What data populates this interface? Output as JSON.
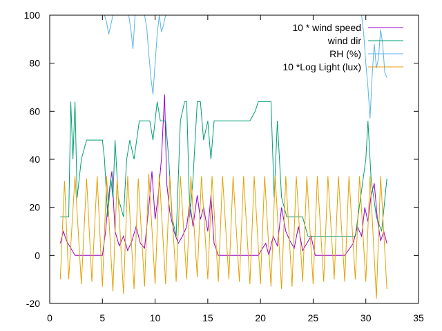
{
  "chart_data": {
    "type": "line",
    "title": "",
    "xlabel": "",
    "ylabel": "",
    "xlim": [
      0,
      35
    ],
    "ylim": [
      -20,
      100
    ],
    "x_ticks": [
      0,
      5,
      10,
      15,
      20,
      25,
      30,
      35
    ],
    "y_ticks": [
      -20,
      0,
      20,
      40,
      60,
      80,
      100
    ],
    "grid": false,
    "legend_position": "top-right",
    "series": [
      {
        "name": "10 * wind speed",
        "color": "#9400d3",
        "x": [
          1.0,
          1.3,
          1.6,
          2.0,
          2.4,
          3.0,
          4.0,
          5.0,
          5.3,
          5.6,
          5.9,
          6.2,
          6.6,
          7.0,
          7.4,
          7.8,
          8.2,
          8.6,
          9.0,
          9.4,
          9.7,
          10.0,
          10.3,
          10.6,
          10.9,
          11.1,
          11.4,
          11.8,
          12.2,
          12.6,
          13.0,
          13.3,
          13.6,
          14.0,
          14.3,
          14.6,
          15.0,
          15.3,
          15.6,
          16.0,
          17.0,
          18.0,
          19.0,
          19.8,
          20.2,
          20.5,
          20.8,
          21.2,
          21.6,
          22.0,
          22.4,
          22.8,
          23.2,
          23.6,
          24.0,
          24.4,
          24.8,
          25.2,
          26.0,
          27.0,
          28.0,
          28.8,
          29.2,
          29.6,
          29.9,
          30.2,
          30.5,
          30.8,
          31.1,
          31.4,
          31.7,
          32.0
        ],
        "values": [
          5,
          10,
          6,
          3,
          0,
          0,
          0,
          0,
          10,
          25,
          35,
          10,
          4,
          8,
          2,
          6,
          12,
          5,
          3,
          20,
          35,
          15,
          25,
          40,
          67,
          30,
          18,
          10,
          5,
          8,
          12,
          22,
          12,
          25,
          15,
          20,
          10,
          25,
          5,
          0,
          0,
          0,
          0,
          0,
          3,
          5,
          0,
          8,
          4,
          20,
          10,
          6,
          3,
          12,
          2,
          5,
          8,
          0,
          0,
          0,
          0,
          5,
          12,
          8,
          20,
          14,
          25,
          30,
          15,
          6,
          10,
          5
        ]
      },
      {
        "name": "wind dir",
        "color": "#009e73",
        "x": [
          1.0,
          1.8,
          2.0,
          2.2,
          2.4,
          2.6,
          3.0,
          3.5,
          4.0,
          5.0,
          5.2,
          5.5,
          5.8,
          6.0,
          6.2,
          6.5,
          7.0,
          7.3,
          7.6,
          8.0,
          8.5,
          9.0,
          9.5,
          9.8,
          10.2,
          10.5,
          11.0,
          11.3,
          11.6,
          12.0,
          12.4,
          12.8,
          13.0,
          13.3,
          13.6,
          14.0,
          14.3,
          14.6,
          15.0,
          15.3,
          15.6,
          17.0,
          19.0,
          19.5,
          19.8,
          20.5,
          21.0,
          21.3,
          21.6,
          22.0,
          22.5,
          24.0,
          24.5,
          25.0,
          26.0,
          28.0,
          29.0,
          29.5,
          30.0,
          30.2,
          30.5,
          31.0,
          31.5,
          32.0
        ],
        "values": [
          16,
          16,
          64,
          40,
          64,
          24,
          40,
          48,
          48,
          48,
          40,
          16,
          32,
          24,
          48,
          24,
          16,
          40,
          48,
          40,
          56,
          56,
          56,
          48,
          64,
          56,
          56,
          40,
          16,
          8,
          56,
          64,
          64,
          16,
          32,
          64,
          64,
          48,
          56,
          40,
          56,
          56,
          56,
          60,
          64,
          64,
          64,
          24,
          56,
          24,
          16,
          16,
          8,
          8,
          8,
          8,
          8,
          24,
          40,
          56,
          32,
          16,
          10,
          32
        ]
      },
      {
        "name": "RH (%)",
        "color": "#56b4e9",
        "x": [
          5.2,
          5.4,
          5.6,
          5.8,
          6.0,
          7.5,
          7.7,
          7.9,
          8.1,
          9.0,
          9.2,
          9.4,
          9.6,
          9.8,
          10.0,
          10.2,
          10.4,
          10.6,
          10.8,
          11.0,
          29.6,
          29.8,
          30.0,
          30.2,
          30.4,
          30.6,
          30.8,
          31.0,
          31.2,
          31.4,
          31.6,
          31.8,
          32.0
        ],
        "values": [
          100,
          97,
          92,
          96,
          100,
          100,
          94,
          86,
          100,
          100,
          95,
          84,
          74,
          67,
          80,
          92,
          100,
          93,
          96,
          100,
          100,
          92,
          80,
          70,
          57,
          75,
          88,
          78,
          82,
          94,
          88,
          76,
          74
        ]
      },
      {
        "name": "10 *Log Light (lux)",
        "color": "#e69f00",
        "x": [
          1.0,
          1.4,
          1.8,
          2.4,
          3.0,
          3.5,
          4.0,
          4.5,
          5.0,
          5.4,
          6.0,
          6.4,
          7.0,
          7.4,
          8.0,
          8.4,
          9.0,
          9.4,
          10.0,
          10.4,
          11.0,
          11.4,
          12.0,
          12.4,
          13.0,
          13.4,
          14.0,
          14.4,
          15.0,
          15.4,
          16.0,
          16.4,
          17.0,
          17.4,
          18.0,
          18.4,
          19.0,
          19.4,
          20.0,
          20.4,
          21.0,
          21.4,
          22.0,
          22.4,
          23.0,
          23.4,
          24.0,
          24.4,
          25.0,
          25.4,
          26.0,
          26.4,
          27.0,
          27.4,
          28.0,
          28.4,
          29.0,
          29.4,
          30.0,
          30.4,
          31.0,
          31.4,
          32.0
        ],
        "values": [
          -10,
          31,
          -10,
          33,
          -12,
          32,
          -11,
          33,
          -13,
          33,
          -15,
          32,
          -16,
          33,
          -14,
          32,
          -13,
          34,
          -12,
          34,
          -12,
          33,
          -11,
          33,
          -10,
          33,
          -9,
          33,
          -10,
          33,
          -11,
          33,
          -10,
          33,
          -11,
          33,
          -12,
          33,
          -12,
          33,
          -13,
          33,
          -14,
          33,
          -13,
          33,
          -11,
          33,
          -12,
          33,
          -11,
          33,
          -10,
          33,
          -11,
          33,
          -10,
          33,
          -11,
          33,
          -18,
          33,
          -14
        ]
      }
    ]
  }
}
